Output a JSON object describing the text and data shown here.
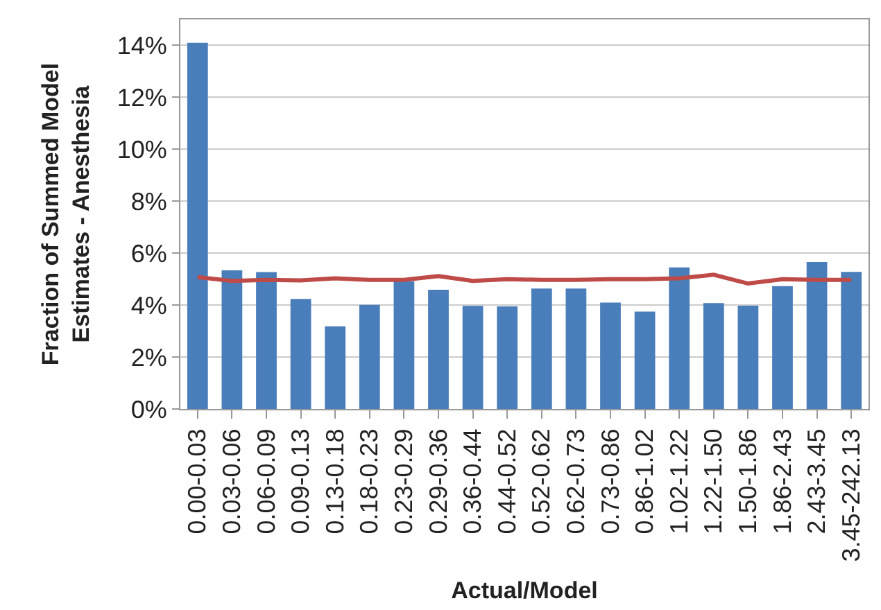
{
  "chart_data": {
    "type": "bar",
    "xlabel": "Actual/Model",
    "ylabel": "Fraction of Summed Model\nEstimates - Anesthesia",
    "categories": [
      "0.00-0.03",
      "0.03-0.06",
      "0.06-0.09",
      "0.09-0.13",
      "0.13-0.18",
      "0.18-0.23",
      "0.23-0.29",
      "0.29-0.36",
      "0.36-0.44",
      "0.44-0.52",
      "0.52-0.62",
      "0.62-0.73",
      "0.73-0.86",
      "0.86-1.02",
      "1.02-1.22",
      "1.22-1.50",
      "1.50-1.86",
      "1.86-2.43",
      "2.43-3.45",
      "3.45-242.13"
    ],
    "series": [
      {
        "color": "#4a7ebb",
        "values": [
          14.1,
          5.34,
          5.27,
          4.24,
          3.18,
          4.01,
          4.92,
          4.59,
          3.97,
          3.95,
          4.64,
          4.64,
          4.1,
          3.75,
          5.45,
          4.08,
          3.98,
          4.73,
          5.66,
          5.28
        ]
      },
      {
        "type": "line",
        "color": "#be4b48",
        "values": [
          5.08,
          4.93,
          4.97,
          4.95,
          5.03,
          4.97,
          4.97,
          5.12,
          4.93,
          5.0,
          4.97,
          4.97,
          5.0,
          5.0,
          5.03,
          5.17,
          4.83,
          5.0,
          4.97,
          4.97
        ]
      }
    ],
    "ylim": [
      0,
      15
    ],
    "yticks": [
      {
        "value": 0,
        "label": "0%"
      },
      {
        "value": 2,
        "label": "2%"
      },
      {
        "value": 4,
        "label": "4%"
      },
      {
        "value": 6,
        "label": "6%"
      },
      {
        "value": 8,
        "label": "8%"
      },
      {
        "value": 10,
        "label": "10%"
      },
      {
        "value": 12,
        "label": "12%"
      },
      {
        "value": 14,
        "label": "14%"
      }
    ],
    "grid": "y"
  }
}
